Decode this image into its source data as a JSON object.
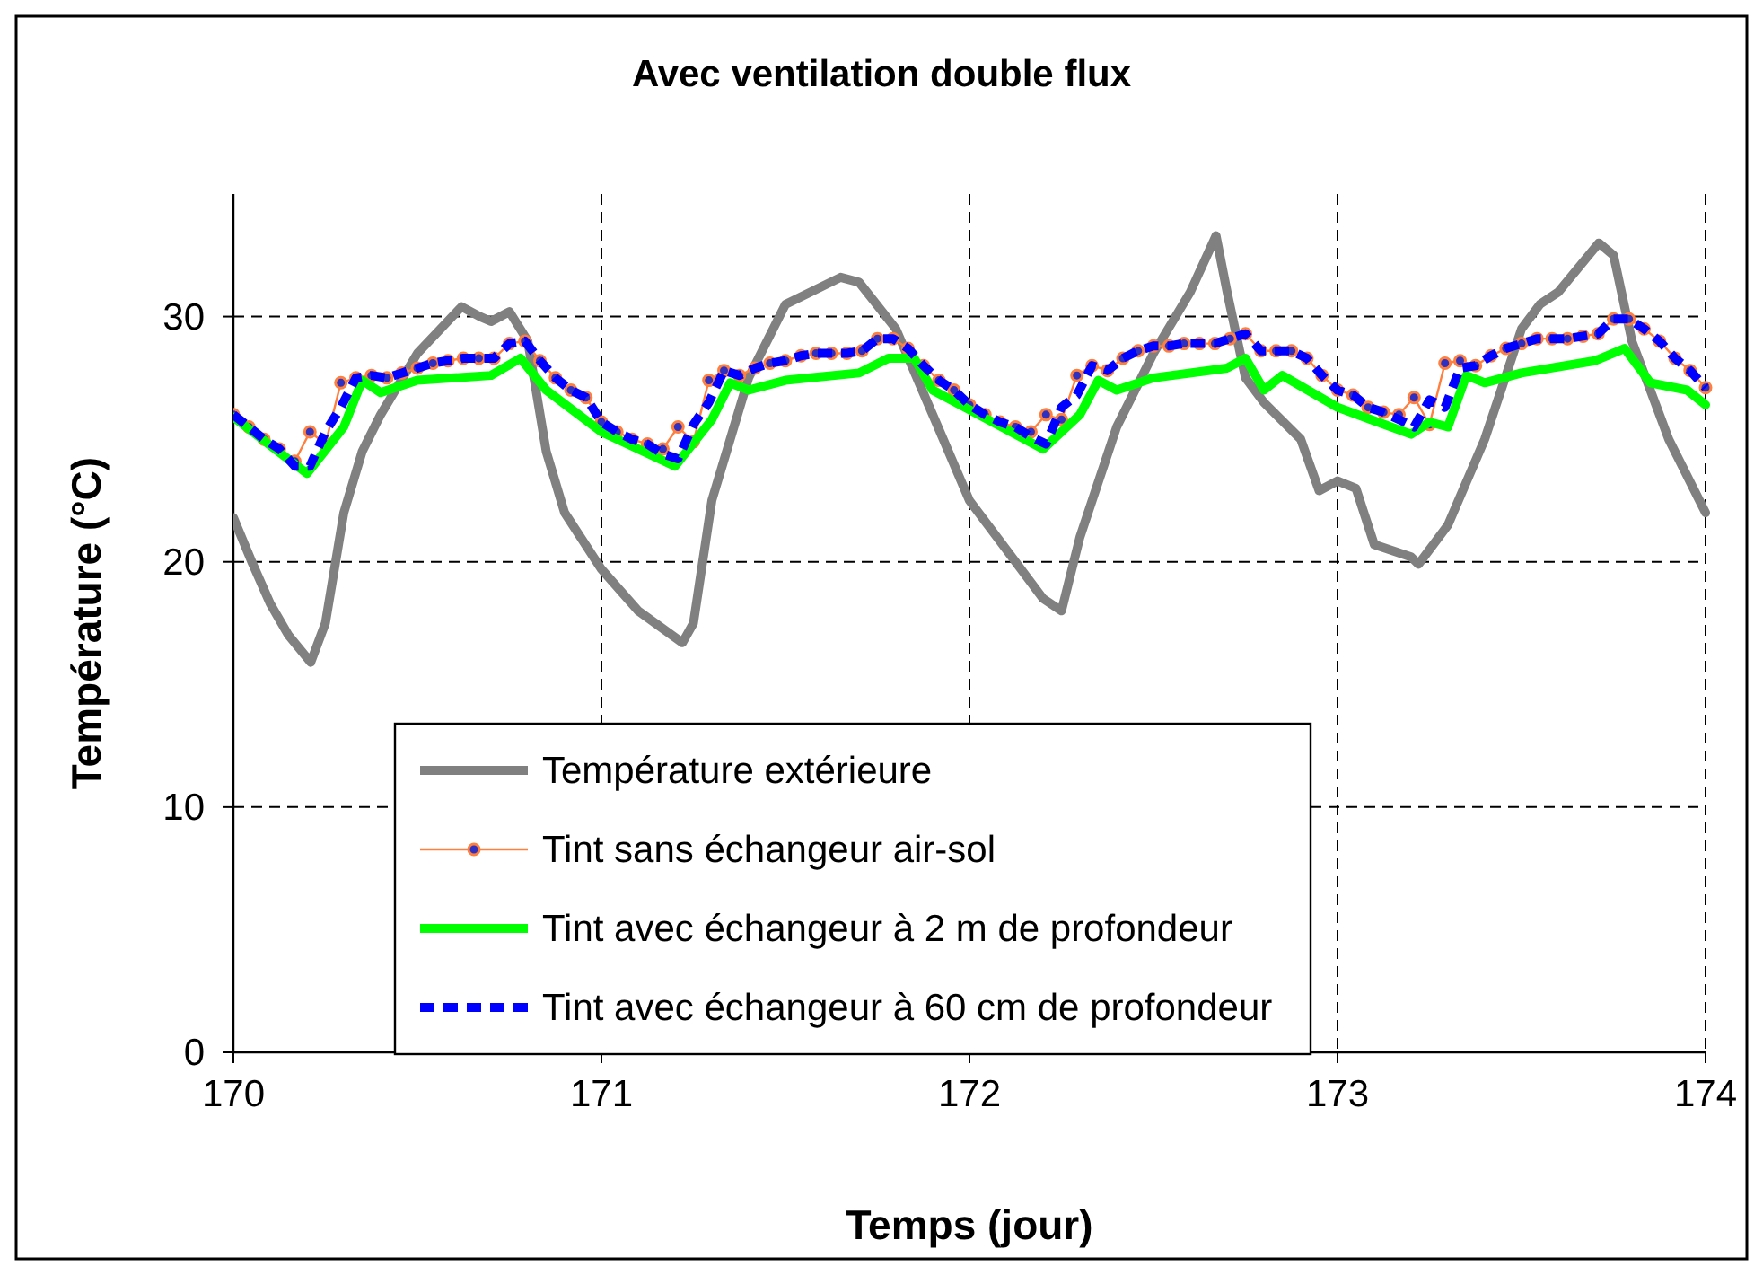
{
  "chart_data": {
    "type": "line",
    "title": "Avec ventilation double flux",
    "xlabel": "Temps (jour)",
    "ylabel": "Température (°C)",
    "xlim": [
      170,
      174
    ],
    "xticks": [
      170,
      171,
      172,
      173,
      174
    ],
    "ylim": [
      0,
      35
    ],
    "yticks": [
      0,
      10,
      20,
      30
    ],
    "grid": true,
    "legend": "bottom",
    "x": [
      170,
      170.042,
      170.083,
      170.125,
      170.167,
      170.208,
      170.25,
      170.292,
      170.333,
      170.375,
      170.417,
      170.458,
      170.5,
      170.542,
      170.583,
      170.625,
      170.667,
      170.708,
      170.75,
      170.792,
      170.833,
      170.875,
      170.917,
      170.958,
      171,
      171.042,
      171.083,
      171.125,
      171.167,
      171.208,
      171.25,
      171.292,
      171.333,
      171.375,
      171.417,
      171.458,
      171.5,
      171.542,
      171.583,
      171.625,
      171.667,
      171.708,
      171.75,
      171.792,
      171.833,
      171.875,
      171.917,
      171.958,
      172,
      172.042,
      172.083,
      172.125,
      172.167,
      172.208,
      172.25,
      172.292,
      172.333,
      172.375,
      172.417,
      172.458,
      172.5,
      172.542,
      172.583,
      172.625,
      172.667,
      172.708,
      172.75,
      172.792,
      172.833,
      172.875,
      172.917,
      172.958,
      173,
      173.042,
      173.083,
      173.125,
      173.167,
      173.208,
      173.25,
      173.292,
      173.333,
      173.375,
      173.417,
      173.458,
      173.5,
      173.542,
      173.583,
      173.625,
      173.667,
      173.708,
      173.75,
      173.792,
      173.833,
      173.875,
      173.917,
      173.958,
      174
    ],
    "series": [
      {
        "name": "Température extérieure",
        "color": "#808080",
        "line_style": "solid",
        "marker": "none",
        "x": [
          170,
          170.05,
          170.1,
          170.15,
          170.21,
          170.25,
          170.3,
          170.35,
          170.4,
          170.5,
          170.62,
          170.67,
          170.7,
          170.75,
          170.8,
          170.85,
          170.9,
          171,
          171.1,
          171.22,
          171.25,
          171.3,
          171.4,
          171.5,
          171.65,
          171.7,
          171.8,
          171.9,
          172,
          172.1,
          172.2,
          172.25,
          172.3,
          172.4,
          172.5,
          172.6,
          172.67,
          172.7,
          172.75,
          172.8,
          172.9,
          172.95,
          173,
          173.05,
          173.1,
          173.2,
          173.22,
          173.3,
          173.4,
          173.5,
          173.55,
          173.6,
          173.71,
          173.75,
          173.8,
          173.85,
          173.9,
          174
        ],
        "values": [
          21.8,
          20,
          18.3,
          17,
          15.9,
          17.5,
          22,
          24.5,
          26,
          28.5,
          30.4,
          30,
          29.8,
          30.2,
          29,
          24.5,
          22,
          19.7,
          18,
          16.7,
          17.5,
          22.5,
          27.5,
          30.5,
          31.6,
          31.4,
          29.5,
          26,
          22.5,
          20.5,
          18.5,
          18,
          21,
          25.5,
          28.5,
          31,
          33.3,
          31,
          27.5,
          26.5,
          25,
          22.9,
          23.3,
          23,
          20.7,
          20.2,
          19.9,
          21.5,
          25,
          29.5,
          30.5,
          31,
          33,
          32.5,
          29,
          27,
          25,
          22
        ]
      },
      {
        "name": "Tint sans échangeur air-sol",
        "color": "#ff7f3f",
        "line_style": "solid",
        "marker": "circle",
        "values": [
          26.0,
          25.5,
          25.0,
          24.6,
          24.1,
          25.3,
          24.8,
          27.3,
          27.5,
          27.6,
          27.5,
          27.7,
          27.9,
          28.1,
          28.2,
          28.3,
          28.3,
          28.3,
          28.9,
          29.0,
          28.2,
          27.5,
          27.0,
          26.7,
          25.7,
          25.3,
          25.0,
          24.8,
          24.6,
          25.5,
          24.9,
          27.4,
          27.8,
          27.6,
          27.9,
          28.1,
          28.2,
          28.4,
          28.5,
          28.5,
          28.5,
          28.6,
          29.1,
          29.1,
          28.7,
          28.0,
          27.4,
          27.0,
          26.4,
          26.0,
          25.7,
          25.5,
          25.3,
          26.0,
          25.8,
          27.6,
          28.0,
          27.8,
          28.3,
          28.6,
          28.8,
          28.8,
          28.9,
          28.9,
          28.9,
          29.1,
          29.3,
          28.6,
          28.6,
          28.6,
          28.3,
          27.6,
          27.0,
          26.8,
          26.3,
          26.1,
          26.0,
          26.7,
          25.6,
          28.1,
          28.2,
          28.0,
          28.4,
          28.7,
          28.9,
          29.1,
          29.1,
          29.1,
          29.2,
          29.3,
          29.9,
          29.9,
          29.5,
          29.0,
          28.3,
          27.8,
          27.1
        ]
      },
      {
        "name": "Tint avec échangeur à 2 m de profondeur",
        "color": "#00ff00",
        "line_style": "solid",
        "marker": "none",
        "x": [
          170,
          170.2,
          170.3,
          170.35,
          170.4,
          170.5,
          170.7,
          170.78,
          170.85,
          171,
          171.2,
          171.3,
          171.35,
          171.4,
          171.5,
          171.7,
          171.78,
          171.85,
          171.9,
          172,
          172.2,
          172.3,
          172.35,
          172.4,
          172.5,
          172.7,
          172.75,
          172.8,
          172.85,
          173,
          173.2,
          173.25,
          173.3,
          173.35,
          173.4,
          173.5,
          173.7,
          173.78,
          173.85,
          173.95,
          174
        ],
        "values": [
          25.9,
          23.6,
          25.5,
          27.4,
          26.9,
          27.4,
          27.6,
          28.3,
          27,
          25.3,
          23.9,
          25.8,
          27.3,
          27,
          27.4,
          27.7,
          28.3,
          28.3,
          27,
          26.2,
          24.6,
          26,
          27.4,
          27,
          27.5,
          27.9,
          28.3,
          27,
          27.6,
          26.3,
          25.2,
          25.7,
          25.5,
          27.6,
          27.3,
          27.7,
          28.2,
          28.7,
          27.3,
          27,
          26.4
        ]
      },
      {
        "name": "Tint avec échangeur à 60 cm de profondeur",
        "color": "#0000ff",
        "line_style": "dashed",
        "marker": "none",
        "values": [
          26.0,
          25.5,
          25.0,
          24.6,
          23.9,
          23.9,
          25.3,
          26.3,
          27.5,
          27.6,
          27.5,
          27.7,
          27.9,
          28.1,
          28.2,
          28.3,
          28.3,
          28.3,
          28.9,
          29.0,
          28.2,
          27.5,
          27.0,
          26.7,
          25.7,
          25.3,
          25.0,
          24.8,
          24.4,
          24.2,
          25.6,
          26.5,
          27.8,
          27.6,
          27.9,
          28.1,
          28.2,
          28.4,
          28.5,
          28.5,
          28.5,
          28.6,
          29.1,
          29.1,
          28.7,
          28.0,
          27.4,
          27.0,
          26.4,
          26.0,
          25.7,
          25.5,
          25.1,
          24.8,
          26.3,
          26.8,
          28.0,
          27.8,
          28.3,
          28.6,
          28.8,
          28.8,
          28.9,
          28.9,
          28.9,
          29.1,
          29.3,
          28.6,
          28.6,
          28.6,
          28.3,
          27.6,
          27.0,
          26.8,
          26.3,
          26.1,
          25.8,
          25.5,
          26.6,
          26.3,
          27.9,
          28.0,
          28.4,
          28.7,
          28.9,
          29.1,
          29.1,
          29.1,
          29.2,
          29.3,
          29.9,
          29.9,
          29.5,
          29.0,
          28.3,
          27.8,
          27.1
        ]
      }
    ]
  }
}
